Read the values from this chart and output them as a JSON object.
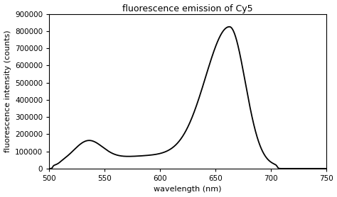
{
  "title": "fluorescence emission of Cy5",
  "xlabel": "wavelength (nm)",
  "ylabel": "fluorescence intensity (counts)",
  "xlim": [
    500,
    750
  ],
  "ylim": [
    0,
    900000
  ],
  "xticks": [
    500,
    550,
    600,
    650,
    700,
    750
  ],
  "yticks": [
    0,
    100000,
    200000,
    300000,
    400000,
    500000,
    600000,
    700000,
    800000,
    900000
  ],
  "line_color": "#000000",
  "line_width": 1.3,
  "background_color": "#ffffff",
  "title_fontsize": 9,
  "label_fontsize": 8,
  "tick_fontsize": 7.5
}
